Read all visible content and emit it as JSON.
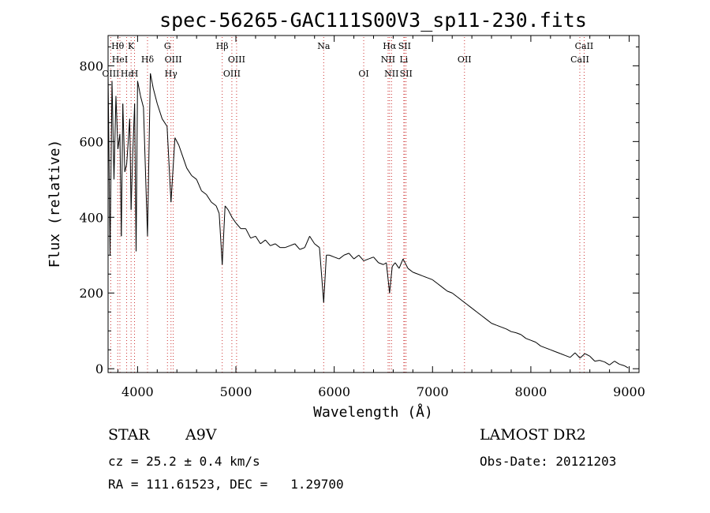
{
  "chart_data": {
    "type": "line",
    "title": "spec-56265-GAC111S00V3_sp11-230.fits",
    "xlabel": "Wavelength (Å)",
    "ylabel": "Flux (relative)",
    "xlim": [
      3700,
      9100
    ],
    "ylim": [
      -10,
      880
    ],
    "xticks": [
      4000,
      5000,
      6000,
      7000,
      8000,
      9000
    ],
    "yticks": [
      0,
      200,
      400,
      600,
      800
    ],
    "xtick_labels": [
      "4000",
      "5000",
      "6000",
      "7000",
      "8000",
      "9000"
    ],
    "ytick_labels": [
      "0",
      "200",
      "400",
      "600",
      "800"
    ],
    "grid": false,
    "line_color": "#000000",
    "marker_color": "#cc3333",
    "series": [
      {
        "x": [
          3700,
          3720,
          3740,
          3760,
          3780,
          3800,
          3820,
          3835,
          3850,
          3870,
          3889,
          3905,
          3920,
          3934,
          3950,
          3970,
          3985,
          4000,
          4030,
          4060,
          4101,
          4130,
          4160,
          4200,
          4250,
          4300,
          4340,
          4380,
          4420,
          4460,
          4500,
          4550,
          4600,
          4650,
          4700,
          4750,
          4800,
          4830,
          4861,
          4890,
          4920,
          4960,
          5000,
          5050,
          5100,
          5150,
          5200,
          5250,
          5300,
          5350,
          5400,
          5450,
          5500,
          5550,
          5600,
          5650,
          5700,
          5750,
          5800,
          5850,
          5893,
          5920,
          5950,
          6000,
          6050,
          6100,
          6150,
          6200,
          6250,
          6300,
          6350,
          6400,
          6450,
          6500,
          6530,
          6563,
          6590,
          6620,
          6660,
          6700,
          6750,
          6800,
          6850,
          6900,
          6950,
          7000,
          7050,
          7100,
          7150,
          7200,
          7250,
          7300,
          7350,
          7400,
          7450,
          7500,
          7550,
          7600,
          7650,
          7700,
          7750,
          7800,
          7850,
          7900,
          7950,
          8000,
          8050,
          8100,
          8150,
          8200,
          8250,
          8300,
          8350,
          8400,
          8450,
          8500,
          8550,
          8600,
          8650,
          8700,
          8750,
          8800,
          8850,
          8900,
          8950,
          8990
        ],
        "y": [
          780,
          300,
          760,
          500,
          720,
          580,
          620,
          350,
          700,
          520,
          540,
          600,
          660,
          420,
          560,
          700,
          310,
          760,
          720,
          690,
          350,
          780,
          740,
          700,
          660,
          640,
          440,
          610,
          590,
          560,
          530,
          510,
          500,
          470,
          460,
          440,
          430,
          410,
          275,
          430,
          420,
          400,
          385,
          370,
          370,
          345,
          350,
          330,
          340,
          325,
          330,
          320,
          320,
          325,
          330,
          315,
          320,
          350,
          330,
          320,
          175,
          300,
          300,
          295,
          290,
          300,
          305,
          290,
          300,
          285,
          290,
          295,
          280,
          275,
          280,
          200,
          270,
          280,
          265,
          290,
          265,
          255,
          250,
          245,
          240,
          235,
          225,
          215,
          205,
          200,
          190,
          180,
          170,
          160,
          150,
          140,
          130,
          120,
          115,
          110,
          105,
          98,
          95,
          90,
          80,
          75,
          70,
          60,
          55,
          50,
          45,
          40,
          35,
          30,
          42,
          28,
          40,
          33,
          20,
          22,
          18,
          10,
          20,
          12,
          8,
          2
        ]
      }
    ],
    "lines": [
      {
        "label": "Hθ",
        "wavelength": 3798,
        "row": 1
      },
      {
        "label": "OIII",
        "wavelength": 3727,
        "row": 3
      },
      {
        "label": "HeI",
        "wavelength": 3820,
        "row": 2
      },
      {
        "label": "Hε",
        "wavelength": 3889,
        "row": 3
      },
      {
        "label": "K",
        "wavelength": 3934,
        "row": 1
      },
      {
        "label": "H",
        "wavelength": 3969,
        "row": 3
      },
      {
        "label": "Hδ",
        "wavelength": 4101,
        "row": 2
      },
      {
        "label": "G",
        "wavelength": 4304,
        "row": 1
      },
      {
        "label": "OIII",
        "wavelength": 4363,
        "row": 2
      },
      {
        "label": "Hγ",
        "wavelength": 4340,
        "row": 3
      },
      {
        "label": "Hβ",
        "wavelength": 4861,
        "row": 1
      },
      {
        "label": "OIII",
        "wavelength": 5007,
        "row": 2
      },
      {
        "label": "OIII",
        "wavelength": 4959,
        "row": 3
      },
      {
        "label": "Na",
        "wavelength": 5893,
        "row": 1
      },
      {
        "label": "OI",
        "wavelength": 6300,
        "row": 3
      },
      {
        "label": "Hα",
        "wavelength": 6563,
        "row": 1
      },
      {
        "label": "SII",
        "wavelength": 6716,
        "row": 1
      },
      {
        "label": "NII",
        "wavelength": 6548,
        "row": 2
      },
      {
        "label": "Li",
        "wavelength": 6708,
        "row": 2
      },
      {
        "label": "NII",
        "wavelength": 6583,
        "row": 3
      },
      {
        "label": "SII",
        "wavelength": 6731,
        "row": 3
      },
      {
        "label": "OII",
        "wavelength": 7325,
        "row": 2
      },
      {
        "label": "CaII",
        "wavelength": 8542,
        "row": 1
      },
      {
        "label": "CaII",
        "wavelength": 8498,
        "row": 2
      }
    ]
  },
  "info": {
    "object_type": "STAR",
    "subclass": "A9V",
    "survey": "LAMOST DR2",
    "cz": "cz = 25.2 ± 0.4 km/s",
    "obs_date": "Obs-Date: 20121203",
    "coords": "RA = 111.61523, DEC =   1.29700"
  }
}
